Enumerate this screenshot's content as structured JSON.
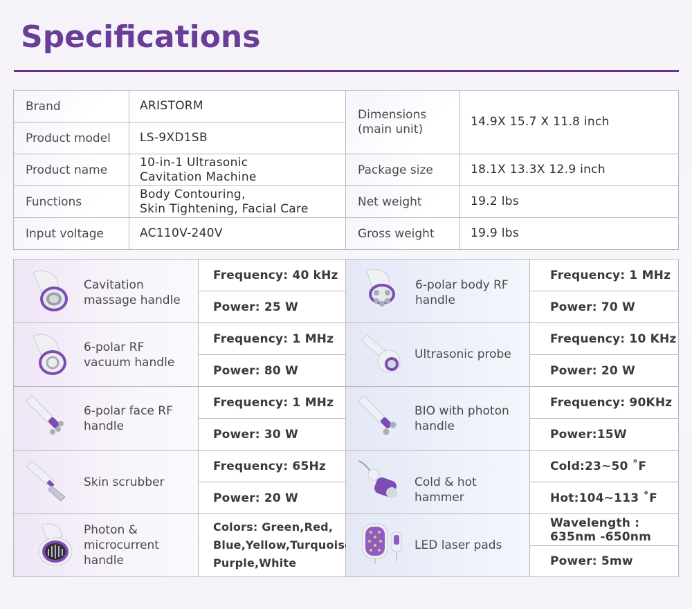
{
  "title": "Specifications",
  "colors": {
    "accent": "#6a3e98",
    "rule": "#6a2f8c",
    "border": "#b7b7bd"
  },
  "basic_specs": {
    "left": [
      {
        "label": "Brand",
        "value": "ARISTORM"
      },
      {
        "label": "Product model",
        "value": "LS-9XD1SB"
      },
      {
        "label": "Product name",
        "value": "10-in-1 Ultrasonic\nCavitation Machine"
      },
      {
        "label": "Functions",
        "value": "Body Contouring,\nSkin Tightening, Facial Care"
      },
      {
        "label": "Input voltage",
        "value": "AC110V-240V"
      }
    ],
    "right": [
      {
        "label": "Dimensions\n(main unit)",
        "value": "14.9X 15.7 X 11.8 inch"
      },
      {
        "label": "Package size",
        "value": "18.1X 13.3X 12.9 inch"
      },
      {
        "label": "Net weight",
        "value": "19.2 lbs"
      },
      {
        "label": "Gross weight",
        "value": "19.9 lbs"
      }
    ]
  },
  "handles": {
    "left": [
      {
        "name": "Cavitation\nmassage handle",
        "icon": "cavitation-handle-icon",
        "spec1": "Frequency: 40 kHz",
        "spec2": "Power: 25 W"
      },
      {
        "name": "6-polar RF\nvacuum handle",
        "icon": "rf-vacuum-handle-icon",
        "spec1": "Frequency: 1 MHz",
        "spec2": "Power: 80 W"
      },
      {
        "name": "6-polar face RF\nhandle",
        "icon": "face-rf-handle-icon",
        "spec1": "Frequency: 1 MHz",
        "spec2": "Power: 30 W"
      },
      {
        "name": "Skin scrubber",
        "icon": "skin-scrubber-icon",
        "spec1": "Frequency: 65Hz",
        "spec2": "Power: 20 W"
      },
      {
        "name": "Photon &\nmicrocurrent\nhandle",
        "icon": "photon-microcurrent-handle-icon",
        "spec1": "Colors: Green,Red,\nBlue,Yellow,Turquoise,\nPurple,White"
      }
    ],
    "right": [
      {
        "name": "6-polar body RF\nhandle",
        "icon": "body-rf-handle-icon",
        "spec1": "Frequency: 1 MHz",
        "spec2": "Power: 70 W"
      },
      {
        "name": "Ultrasonic probe",
        "icon": "ultrasonic-probe-icon",
        "spec1": "Frequency: 10 KHz",
        "spec2": "Power: 20 W"
      },
      {
        "name": "BIO with photon\nhandle",
        "icon": "bio-photon-handle-icon",
        "spec1": "Frequency: 90KHz",
        "spec2": "Power:15W"
      },
      {
        "name": "Cold & hot hammer",
        "icon": "cold-hot-hammer-icon",
        "spec1": "Cold:23~50 ˚F",
        "spec2": "Hot:104~113 ˚F"
      },
      {
        "name": "LED laser pads",
        "icon": "led-laser-pads-icon",
        "spec1": "Wavelength :\n635nm -650nm",
        "spec2": "Power: 5mw"
      }
    ]
  }
}
